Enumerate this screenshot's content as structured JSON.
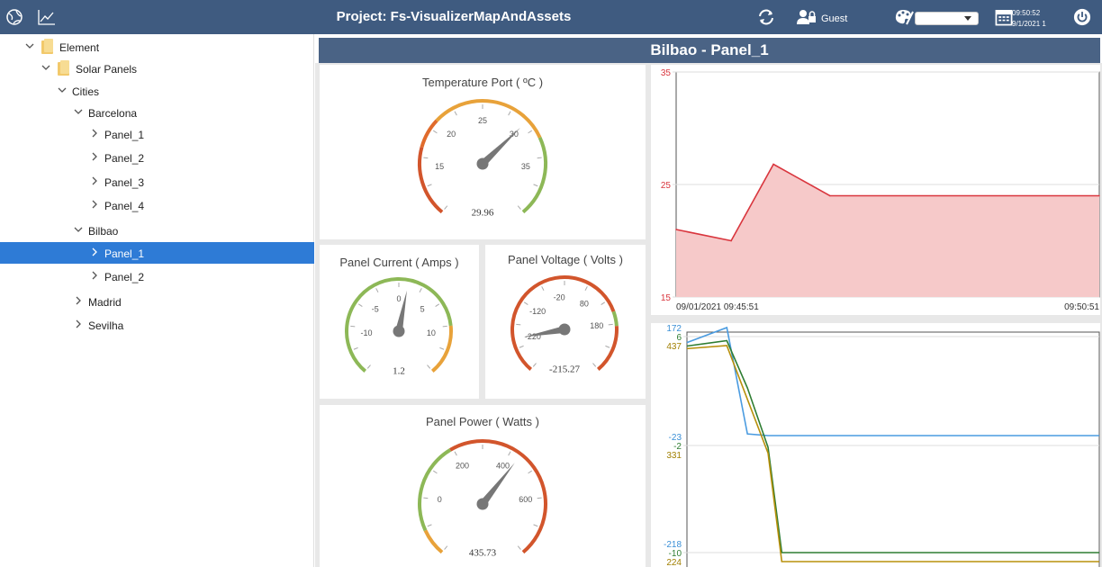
{
  "topbar": {
    "title": "Project: Fs-VisualizerMapAndAssets",
    "user": "Guest",
    "theme_value": "",
    "time": "09:50:52",
    "date": "9/1/2021 1"
  },
  "tree": [
    {
      "label": "Element",
      "expanded": true
    },
    {
      "label": "Solar Panels",
      "expanded": true
    },
    {
      "label": "Cities",
      "expanded": true
    },
    {
      "label": "Barcelona",
      "expanded": true
    },
    {
      "label": "Panel_1",
      "expanded": false
    },
    {
      "label": "Panel_2",
      "expanded": false
    },
    {
      "label": "Panel_3",
      "expanded": false
    },
    {
      "label": "Panel_4",
      "expanded": false
    },
    {
      "label": "Bilbao",
      "expanded": true
    },
    {
      "label": "Panel_1",
      "expanded": false,
      "selected": true
    },
    {
      "label": "Panel_2",
      "expanded": false
    },
    {
      "label": "Madrid",
      "expanded": false
    },
    {
      "label": "Sevilha",
      "expanded": false
    }
  ],
  "main": {
    "panel_title": "Bilbao - Panel_1"
  },
  "gauges": {
    "temperature": {
      "title": "Temperature Port ( ºC )",
      "value": "29.96",
      "value_num": 29.96,
      "min": 10,
      "max": 40,
      "ticks": [
        "15",
        "20",
        "25",
        "30",
        "35"
      ]
    },
    "current": {
      "title": "Panel Current ( Amps )",
      "value": "1.2",
      "value_num": 1.2,
      "min": -15,
      "max": 15,
      "ticks": [
        "-10",
        "-5",
        "0",
        "5",
        "10"
      ]
    },
    "voltage": {
      "title": "Panel Voltage ( Volts )",
      "value": "-215.27",
      "value_num": -215.27,
      "min": -300,
      "max": 300,
      "ticks": [
        "-220",
        "-120",
        "-20",
        "80",
        "180"
      ]
    },
    "power": {
      "title": "Panel Power ( Watts )",
      "value": "435.73",
      "value_num": 435.73,
      "min": -200,
      "max": 800,
      "ticks": [
        "0",
        "200",
        "400",
        "600"
      ]
    }
  },
  "chart_data": [
    {
      "type": "area",
      "x": [
        "09:45:51",
        "09:46:30",
        "09:47:00",
        "09:47:40",
        "09:50:51"
      ],
      "series": [
        {
          "values": [
            21,
            20,
            26.8,
            24,
            24
          ],
          "color": "#d9363e"
        }
      ],
      "xticks": [
        "09/01/2021 09:45:51",
        "09:50:51"
      ],
      "yticks": [
        "15",
        "25",
        "35"
      ],
      "ylim": [
        15,
        35
      ],
      "grid": true
    },
    {
      "type": "line",
      "x": [
        "09:45:51",
        "09:46:20",
        "09:46:35",
        "09:46:50",
        "09:47:00",
        "09:47:20",
        "09:50:51"
      ],
      "axes": [
        {
          "ticks": [
            "172",
            "-23",
            "-218"
          ],
          "color": "#3a8fd6"
        },
        {
          "ticks": [
            "6",
            "-2",
            "-10"
          ],
          "color": "#2e7d32"
        },
        {
          "ticks": [
            "437",
            "331",
            "224"
          ],
          "color": "#a07f00"
        }
      ],
      "series": [
        {
          "color": "#4a9be0",
          "values": [
            145,
            172,
            -20,
            -23,
            -23,
            -23,
            -23
          ]
        },
        {
          "color": "#2e7d32",
          "values": [
            5.3,
            5.7,
            2.2,
            -2.2,
            -10,
            -10,
            -10
          ]
        },
        {
          "color": "#b8900c",
          "values": [
            434,
            437,
            384,
            331,
            224,
            224,
            224
          ]
        }
      ],
      "grid": true
    }
  ]
}
